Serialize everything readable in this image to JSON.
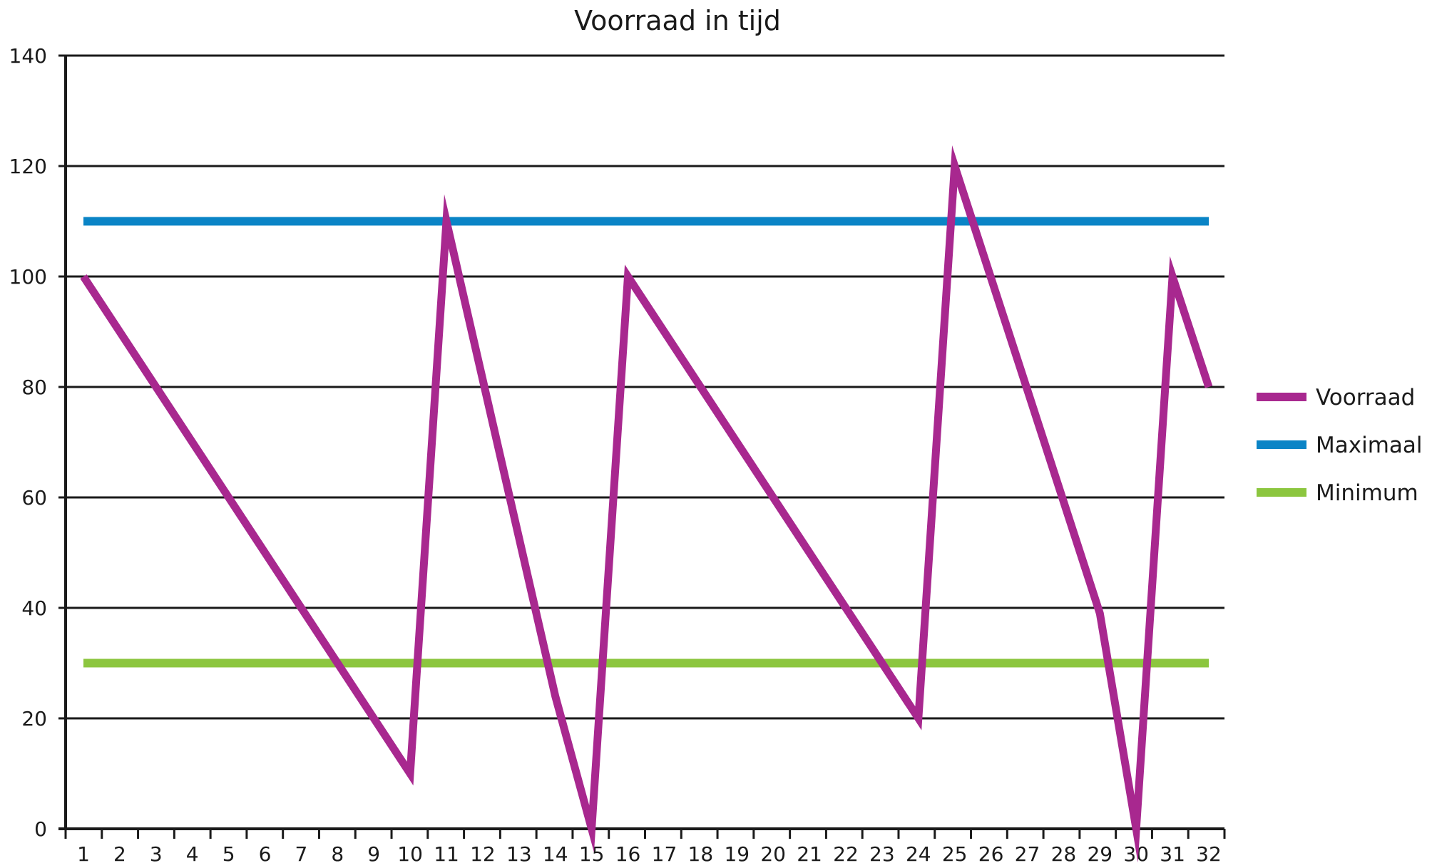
{
  "chart_data": {
    "type": "line",
    "title": "Voorraad in tijd",
    "xlabel": "",
    "ylabel": "",
    "categories": [
      "1",
      "2",
      "3",
      "4",
      "5",
      "6",
      "7",
      "8",
      "9",
      "10",
      "11",
      "12",
      "13",
      "14",
      "15",
      "16",
      "17",
      "18",
      "19",
      "20",
      "21",
      "22",
      "23",
      "24",
      "25",
      "26",
      "27",
      "28",
      "29",
      "30",
      "31",
      "32"
    ],
    "ylim": [
      0,
      140
    ],
    "yticks": [
      0,
      20,
      40,
      60,
      80,
      100,
      120,
      140
    ],
    "grid": true,
    "legend_position": "right",
    "series": [
      {
        "name": "Voorraad",
        "color": "#a8288f",
        "points": [
          [
            1,
            100
          ],
          [
            10,
            10
          ],
          [
            11,
            110
          ],
          [
            14,
            24
          ],
          [
            15,
            0
          ],
          [
            16,
            100
          ],
          [
            24,
            20
          ],
          [
            25,
            120
          ],
          [
            29,
            39
          ],
          [
            30,
            0
          ],
          [
            31,
            100
          ],
          [
            32,
            80
          ]
        ]
      },
      {
        "name": "Maximaal",
        "color": "#0a84c6",
        "points": [
          [
            1,
            110
          ],
          [
            32,
            110
          ]
        ]
      },
      {
        "name": "Minimum",
        "color": "#8cc63f",
        "points": [
          [
            1,
            30
          ],
          [
            32,
            30
          ]
        ]
      }
    ]
  }
}
